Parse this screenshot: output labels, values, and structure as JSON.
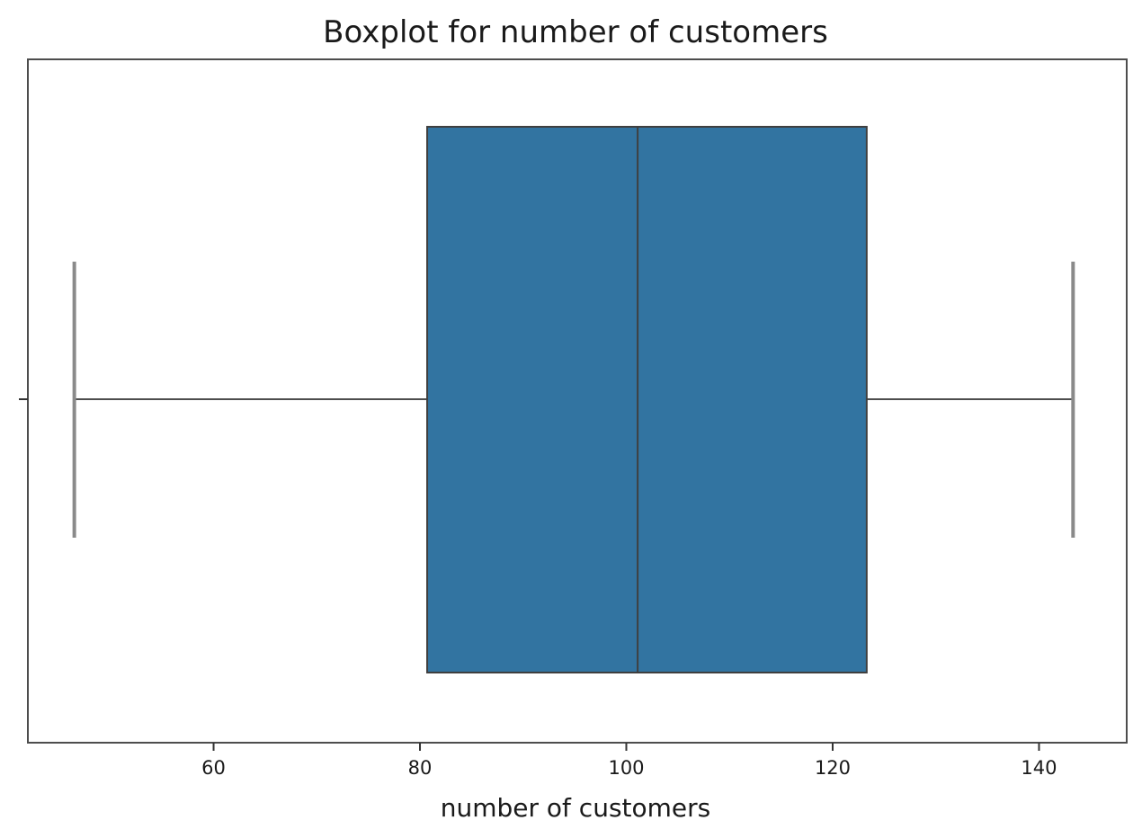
{
  "chart_data": {
    "type": "boxplot",
    "title": "Boxplot for number of customers",
    "xlabel": "number of customers",
    "ylabel": "",
    "orientation": "horizontal",
    "xlim": [
      42,
      148.5
    ],
    "xticks": [
      60,
      80,
      100,
      120,
      140
    ],
    "grid": false,
    "box": {
      "whisker_low": 46.5,
      "q1": 80.7,
      "median": 101.1,
      "q3": 123.3,
      "whisker_high": 143.3
    },
    "colors": {
      "box_fill": "#3274a1",
      "box_edge": "#3f3f3f",
      "whisker": "#4d4d4d",
      "cap": "#8a8a8a",
      "frame": "#4d4d4d"
    }
  }
}
